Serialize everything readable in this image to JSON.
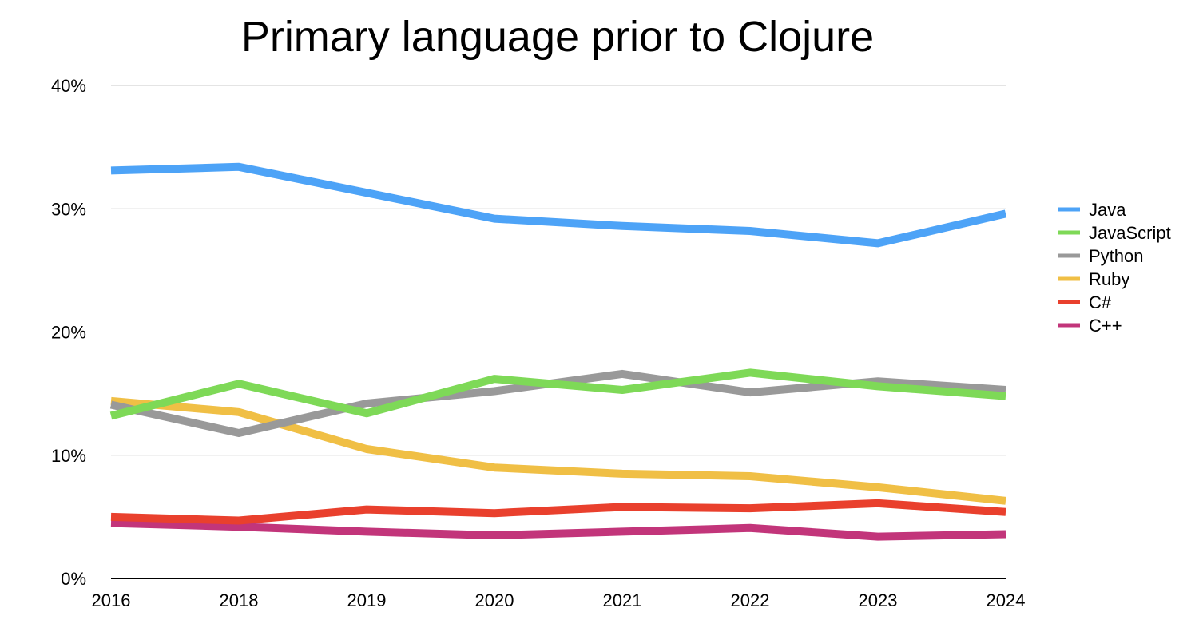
{
  "chart_data": {
    "type": "line",
    "title": "Primary language prior to Clojure",
    "xlabel": "",
    "ylabel": "",
    "categories": [
      "2016",
      "2018",
      "2019",
      "2020",
      "2021",
      "2022",
      "2023",
      "2024"
    ],
    "ylim": [
      0,
      40
    ],
    "yticks": [
      0,
      10,
      20,
      30,
      40
    ],
    "ytick_labels": [
      "0%",
      "10%",
      "20%",
      "30%",
      "40%"
    ],
    "grid": true,
    "legend_position": "right",
    "series": [
      {
        "name": "Java",
        "color": "#4da3f7",
        "values": [
          33.1,
          33.4,
          31.3,
          29.2,
          28.6,
          28.2,
          27.2,
          29.6
        ]
      },
      {
        "name": "JavaScript",
        "color": "#7ed957",
        "values": [
          13.2,
          15.8,
          13.4,
          16.2,
          15.3,
          16.7,
          15.6,
          14.8
        ]
      },
      {
        "name": "Python",
        "color": "#999999",
        "values": [
          14.1,
          11.8,
          14.2,
          15.2,
          16.6,
          15.1,
          16.0,
          15.3
        ]
      },
      {
        "name": "Ruby",
        "color": "#f0bf45",
        "values": [
          14.4,
          13.5,
          10.5,
          9.0,
          8.5,
          8.3,
          7.4,
          6.3
        ]
      },
      {
        "name": "C#",
        "color": "#e9402d",
        "values": [
          5.0,
          4.7,
          5.6,
          5.3,
          5.8,
          5.7,
          6.1,
          5.4
        ]
      },
      {
        "name": "C++",
        "color": "#c2357a",
        "values": [
          4.5,
          4.2,
          3.8,
          3.5,
          3.8,
          4.1,
          3.4,
          3.6
        ]
      }
    ]
  }
}
